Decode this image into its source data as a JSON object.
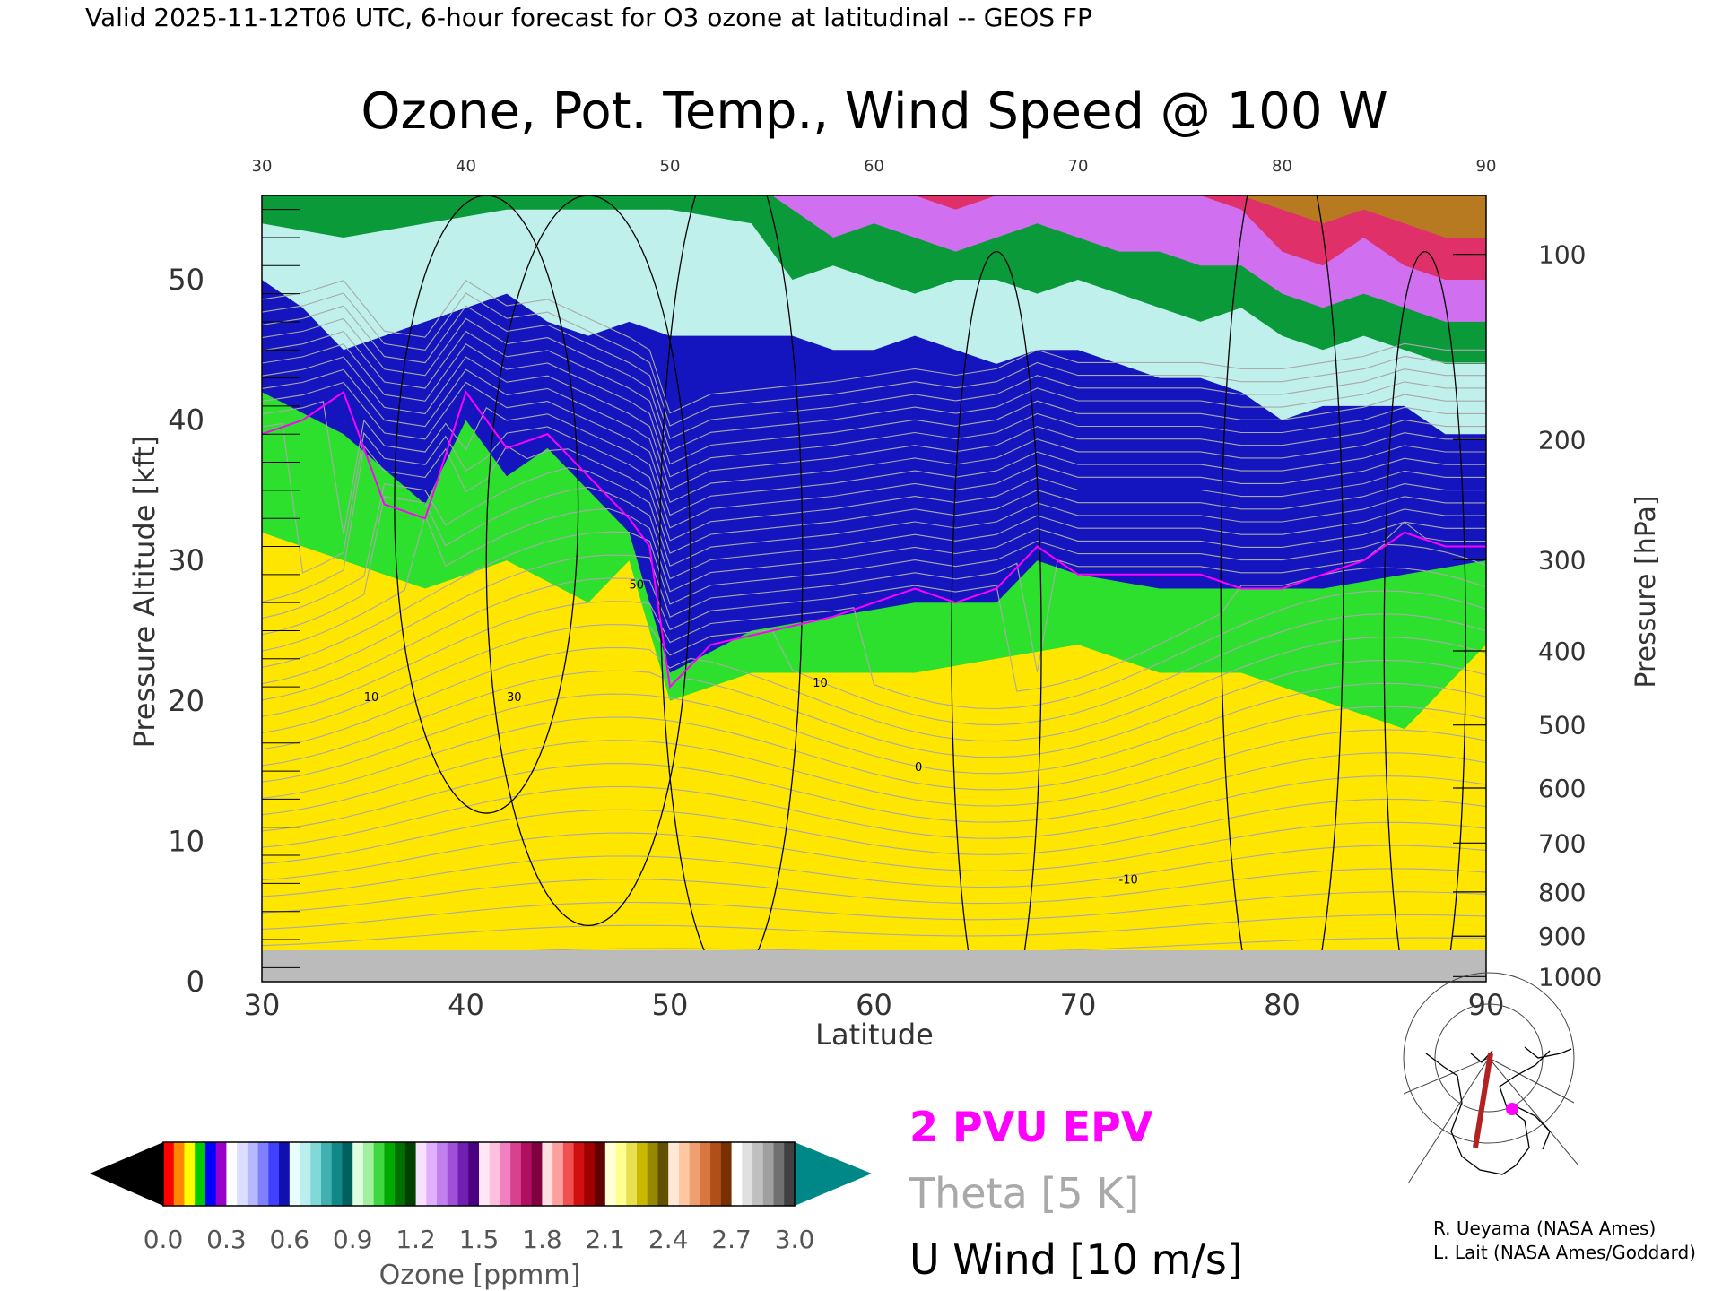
{
  "header": {
    "valid_line": "Valid 2025-11-12T06 UTC, 6-hour forecast for O3 ozone at latitudinal -- GEOS FP"
  },
  "chart_data": {
    "type": "heatmap",
    "title": "Ozone, Pot. Temp., Wind Speed @ 100 W",
    "xlabel": "Latitude",
    "ylabel_left": "Pressure Altitude [kft]",
    "ylabel_right": "Pressure [hPa]",
    "xlim": [
      30,
      90
    ],
    "ylim_kft": [
      0,
      56
    ],
    "x_ticks": [
      "30",
      "40",
      "50",
      "60",
      "70",
      "80",
      "90"
    ],
    "y_ticks_left": [
      "0",
      "10",
      "20",
      "30",
      "40",
      "50"
    ],
    "y_ticks_right": [
      {
        "label": "100",
        "hpa": 100
      },
      {
        "label": "200",
        "hpa": 200
      },
      {
        "label": "300",
        "hpa": 300
      },
      {
        "label": "400",
        "hpa": 400
      },
      {
        "label": "500",
        "hpa": 500
      },
      {
        "label": "600",
        "hpa": 600
      },
      {
        "label": "700",
        "hpa": 700
      },
      {
        "label": "800",
        "hpa": 800
      },
      {
        "label": "900",
        "hpa": 900
      },
      {
        "label": "1000",
        "hpa": 1000
      }
    ],
    "tropopause_kft": [
      [
        30,
        39
      ],
      [
        32,
        40
      ],
      [
        34,
        42
      ],
      [
        36,
        34
      ],
      [
        38,
        33
      ],
      [
        40,
        42
      ],
      [
        42,
        38
      ],
      [
        44,
        39
      ],
      [
        46,
        36
      ],
      [
        48,
        33
      ],
      [
        49,
        31
      ],
      [
        50,
        21
      ],
      [
        52,
        24
      ],
      [
        55,
        25
      ],
      [
        58,
        26
      ],
      [
        60,
        27
      ],
      [
        62,
        28
      ],
      [
        64,
        27
      ],
      [
        66,
        28
      ],
      [
        68,
        31
      ],
      [
        70,
        29
      ],
      [
        72,
        29
      ],
      [
        74,
        29
      ],
      [
        76,
        29
      ],
      [
        78,
        28
      ],
      [
        80,
        28
      ],
      [
        82,
        29
      ],
      [
        84,
        30
      ],
      [
        86,
        32
      ],
      [
        88,
        31
      ],
      [
        90,
        31
      ]
    ],
    "ozone_layers_kft": [
      {
        "ppmm": 0.1,
        "bottom": [
          [
            30,
            0
          ],
          [
            50,
            0
          ],
          [
            60,
            0
          ],
          [
            70,
            0
          ],
          [
            80,
            0
          ],
          [
            90,
            0
          ]
        ]
      },
      {
        "ppmm": 0.3,
        "bottom": [
          [
            30,
            32
          ],
          [
            34,
            30
          ],
          [
            38,
            28
          ],
          [
            42,
            30
          ],
          [
            46,
            27
          ],
          [
            48,
            30
          ],
          [
            50,
            20
          ],
          [
            54,
            22
          ],
          [
            58,
            22
          ],
          [
            62,
            22
          ],
          [
            66,
            23
          ],
          [
            70,
            24
          ],
          [
            74,
            22
          ],
          [
            78,
            22
          ],
          [
            82,
            20
          ],
          [
            86,
            18
          ],
          [
            90,
            24
          ]
        ]
      },
      {
        "ppmm": 0.6,
        "bottom": [
          [
            30,
            42
          ],
          [
            34,
            39
          ],
          [
            38,
            34
          ],
          [
            40,
            40
          ],
          [
            42,
            36
          ],
          [
            44,
            38
          ],
          [
            46,
            35
          ],
          [
            48,
            32
          ],
          [
            50,
            22
          ],
          [
            54,
            25
          ],
          [
            58,
            26
          ],
          [
            62,
            27
          ],
          [
            66,
            27
          ],
          [
            68,
            30
          ],
          [
            70,
            29
          ],
          [
            74,
            28
          ],
          [
            78,
            28
          ],
          [
            82,
            28
          ],
          [
            86,
            29
          ],
          [
            90,
            30
          ]
        ]
      },
      {
        "ppmm": 0.9,
        "bottom": [
          [
            30,
            50
          ],
          [
            32,
            48
          ],
          [
            34,
            45
          ],
          [
            36,
            46
          ],
          [
            38,
            47
          ],
          [
            40,
            48
          ],
          [
            42,
            49
          ],
          [
            44,
            47
          ],
          [
            46,
            46
          ],
          [
            48,
            47
          ],
          [
            50,
            46
          ],
          [
            52,
            46
          ],
          [
            54,
            46
          ],
          [
            56,
            46
          ],
          [
            58,
            45
          ],
          [
            60,
            45
          ],
          [
            62,
            46
          ],
          [
            64,
            45
          ],
          [
            66,
            44
          ],
          [
            68,
            45
          ],
          [
            70,
            45
          ],
          [
            72,
            44
          ],
          [
            74,
            43
          ],
          [
            76,
            43
          ],
          [
            78,
            42
          ],
          [
            80,
            40
          ],
          [
            82,
            41
          ],
          [
            84,
            41
          ],
          [
            86,
            41
          ],
          [
            88,
            39
          ],
          [
            90,
            39
          ]
        ]
      },
      {
        "ppmm": 1.2,
        "bottom": [
          [
            30,
            54
          ],
          [
            34,
            53
          ],
          [
            38,
            54
          ],
          [
            42,
            55
          ],
          [
            46,
            55
          ],
          [
            50,
            55
          ],
          [
            54,
            54
          ],
          [
            56,
            50
          ],
          [
            58,
            51
          ],
          [
            60,
            50
          ],
          [
            62,
            49
          ],
          [
            64,
            50
          ],
          [
            66,
            50
          ],
          [
            68,
            49
          ],
          [
            70,
            50
          ],
          [
            72,
            49
          ],
          [
            74,
            48
          ],
          [
            76,
            47
          ],
          [
            78,
            48
          ],
          [
            80,
            46
          ],
          [
            82,
            45
          ],
          [
            84,
            46
          ],
          [
            86,
            45
          ],
          [
            88,
            44
          ],
          [
            90,
            44
          ]
        ]
      },
      {
        "ppmm": 1.5,
        "bottom": [
          [
            55,
            56
          ],
          [
            58,
            53
          ],
          [
            60,
            54
          ],
          [
            62,
            53
          ],
          [
            64,
            52
          ],
          [
            66,
            53
          ],
          [
            68,
            54
          ],
          [
            70,
            53
          ],
          [
            72,
            52
          ],
          [
            74,
            52
          ],
          [
            76,
            51
          ],
          [
            78,
            51
          ],
          [
            80,
            49
          ],
          [
            82,
            48
          ],
          [
            84,
            49
          ],
          [
            86,
            48
          ],
          [
            88,
            47
          ],
          [
            90,
            47
          ]
        ]
      },
      {
        "ppmm": 1.8,
        "bottom": [
          [
            58,
            56
          ],
          [
            62,
            56
          ],
          [
            64,
            55
          ],
          [
            66,
            56
          ],
          [
            76,
            56
          ],
          [
            78,
            55
          ],
          [
            80,
            52
          ],
          [
            82,
            51
          ],
          [
            84,
            53
          ],
          [
            86,
            51
          ],
          [
            88,
            50
          ],
          [
            90,
            50
          ]
        ]
      },
      {
        "ppmm": 2.4,
        "bottom": [
          [
            78,
            56
          ],
          [
            80,
            55
          ],
          [
            82,
            54
          ],
          [
            84,
            55
          ],
          [
            86,
            54
          ],
          [
            88,
            53
          ],
          [
            90,
            53
          ]
        ]
      }
    ],
    "theta_levels_K": [
      "300",
      "310",
      "330",
      "340",
      "350",
      "360",
      "370",
      "380",
      "390",
      "400"
    ],
    "u_wind_labels_m_s": [
      "10",
      "30",
      "50",
      "0",
      "10",
      "-10"
    ],
    "colorbar": {
      "label": "Ozone [ppmm]",
      "ticks": [
        "0.0",
        "0.3",
        "0.6",
        "0.9",
        "1.2",
        "1.5",
        "1.8",
        "2.1",
        "2.4",
        "2.7",
        "3.0"
      ],
      "colors": [
        [
          "#ff0000",
          "#ff8800",
          "#ffff00",
          "#00cc00",
          "#0000ff",
          "#9900cc",
          "#ffffff",
          "#ddddff",
          "#b8b8ff",
          "#8080ff",
          "#4040ff",
          "#1010b0"
        ],
        [
          "#e8ffff",
          "#bbeeee",
          "#80d8d8",
          "#40b0b0",
          "#108888",
          "#006060"
        ],
        [
          "#e0ffe0",
          "#a0f0a0",
          "#40d840",
          "#00aa00",
          "#007000",
          "#004000"
        ],
        [
          "#f8e0ff",
          "#e0b0ff",
          "#c080f0",
          "#a050d8",
          "#7020b0",
          "#4a0080"
        ],
        [
          "#ffe8f4",
          "#ffc0e0",
          "#f080c0",
          "#d84090",
          "#b01060",
          "#800040"
        ],
        [
          "#ffe0e0",
          "#ffa0a0",
          "#f05050",
          "#d01010",
          "#a00000",
          "#600000"
        ],
        [
          "#ffffd8",
          "#ffff90",
          "#e8e050",
          "#c8b800",
          "#988800",
          "#605000"
        ],
        [
          "#ffe8d8",
          "#ffc8a0",
          "#f0a070",
          "#d87840",
          "#b05018",
          "#783000"
        ],
        [
          "#ffffff",
          "#e0e0e0",
          "#c0c0c0",
          "#a0a0a0",
          "#707070",
          "#404040"
        ]
      ],
      "under_color": "#000000",
      "over_color": "#008888"
    },
    "legend": [
      {
        "label": "2 PVU EPV",
        "color": "#ff00ff"
      },
      {
        "label": "Theta [5 K]",
        "color": "#a9a9a9"
      },
      {
        "label": "U Wind [10 m/s]",
        "color": "#000000"
      }
    ],
    "inset_map_marker_color": "#ff00ff",
    "section_line_color": "#b22222"
  },
  "credits": {
    "line1": "R. Ueyama (NASA Ames)",
    "line2": "L. Lait (NASA Ames/Goddard)"
  }
}
